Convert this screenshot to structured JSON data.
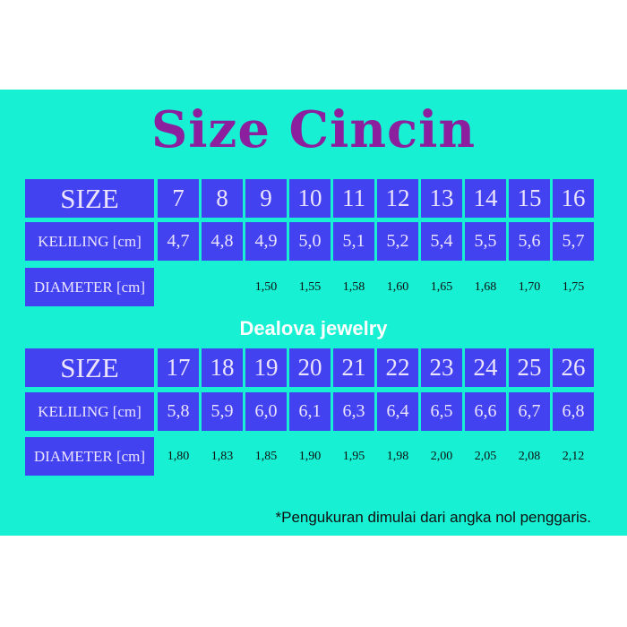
{
  "title": "Size Cincin",
  "brand": "Dealova jewelry",
  "footnote": "*Pengukuran dimulai dari angka nol penggaris.",
  "colors": {
    "background": "#17f0d2",
    "cell": "#4242f0",
    "title": "#8b1f9e",
    "cell_text": "#ece4ff"
  },
  "labels": {
    "size": "SIZE",
    "keliling": "KELILING [cm]",
    "diameter": "DIAMETER [cm]"
  },
  "tables": [
    {
      "size": [
        "7",
        "8",
        "9",
        "10",
        "11",
        "12",
        "13",
        "14",
        "15",
        "16"
      ],
      "keliling": [
        "4,7",
        "4,8",
        "4,9",
        "5,0",
        "5,1",
        "5,2",
        "5,4",
        "5,5",
        "5,6",
        "5,7"
      ],
      "diameter": [
        "",
        "",
        "1,50",
        "1,55",
        "1,58",
        "1,60",
        "1,65",
        "1,68",
        "1,70",
        "1,75"
      ]
    },
    {
      "size": [
        "17",
        "18",
        "19",
        "20",
        "21",
        "22",
        "23",
        "24",
        "25",
        "26"
      ],
      "keliling": [
        "5,8",
        "5,9",
        "6,0",
        "6,1",
        "6,3",
        "6,4",
        "6,5",
        "6,6",
        "6,7",
        "6,8"
      ],
      "diameter": [
        "1,80",
        "1,83",
        "1,85",
        "1,90",
        "1,95",
        "1,98",
        "2,00",
        "2,05",
        "2,08",
        "2,12"
      ]
    }
  ]
}
